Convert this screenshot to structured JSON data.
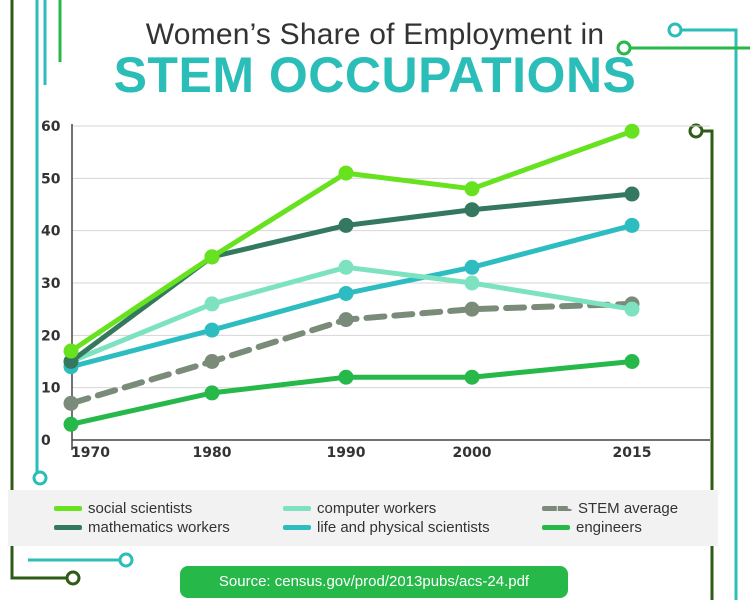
{
  "header": {
    "subtitle": "Women’s Share of Employment in",
    "title": "STEM OCCUPATIONS"
  },
  "source": "Source: census.gov/prod/2013pubs/acs-24.pdf",
  "chart_data": {
    "type": "line",
    "title": "Women’s Share of Employment in STEM OCCUPATIONS",
    "xlabel": "",
    "ylabel": "",
    "x": [
      "1970",
      "1980",
      "1990",
      "2000",
      "2015"
    ],
    "y_ticks": [
      "0",
      "10",
      "20",
      "30",
      "40",
      "50",
      "60"
    ],
    "ylim": [
      0,
      60
    ],
    "grid": true,
    "legend_position": "bottom",
    "series": [
      {
        "name": "social scientists",
        "color": "#66e21f",
        "dashed": false,
        "values": [
          17,
          35,
          51,
          48,
          59
        ]
      },
      {
        "name": "mathematics workers",
        "color": "#347860",
        "dashed": false,
        "values": [
          15,
          35,
          41,
          44,
          47
        ]
      },
      {
        "name": "computer workers",
        "color": "#7de2c0",
        "dashed": false,
        "values": [
          15,
          26,
          33,
          30,
          25
        ]
      },
      {
        "name": "life and physical scientists",
        "color": "#2dbdc0",
        "dashed": false,
        "values": [
          14,
          21,
          28,
          33,
          41
        ]
      },
      {
        "name": "STEM average",
        "color": "#7a8c79",
        "dashed": true,
        "values": [
          7,
          15,
          23,
          25,
          26
        ]
      },
      {
        "name": "engineers",
        "color": "#27b84a",
        "dashed": false,
        "values": [
          3,
          9,
          12,
          12,
          15
        ]
      }
    ]
  }
}
